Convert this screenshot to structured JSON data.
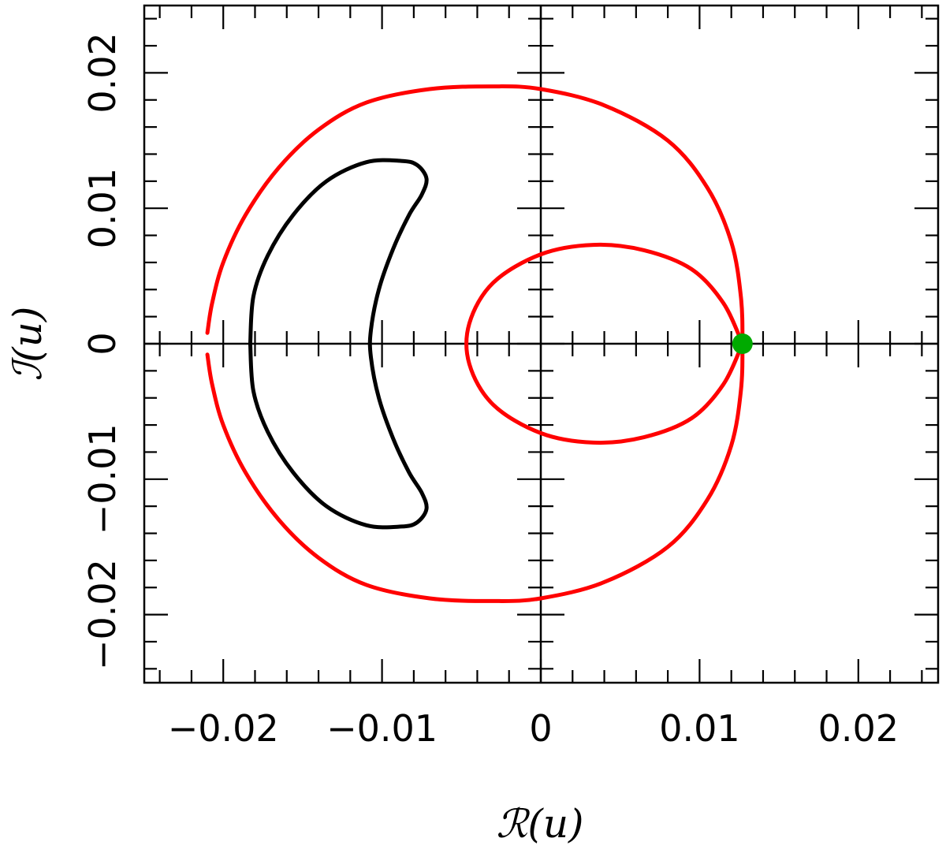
{
  "chart_data": {
    "type": "scatter",
    "title": "",
    "xlabel": "ℛ(u)",
    "ylabel": "ℐ(u)",
    "xlim": [
      -0.025,
      0.025
    ],
    "ylim": [
      -0.025,
      0.025
    ],
    "x_ticks": [
      {
        "value": -0.02,
        "label": "−0.02"
      },
      {
        "value": -0.01,
        "label": "−0.01"
      },
      {
        "value": 0,
        "label": "0"
      },
      {
        "value": 0.01,
        "label": "0.01"
      },
      {
        "value": 0.02,
        "label": "0.02"
      }
    ],
    "y_ticks": [
      {
        "value": -0.02,
        "label": "−0.02"
      },
      {
        "value": -0.01,
        "label": "−0.01"
      },
      {
        "value": 0,
        "label": "0"
      },
      {
        "value": 0.01,
        "label": "0.01"
      },
      {
        "value": 0.02,
        "label": "0.02"
      }
    ],
    "minor_tick_step": 0.002,
    "grid": false,
    "legend": "none",
    "series": [
      {
        "color": "#ff0000",
        "kind": "curve",
        "points": [
          [
            -0.021,
            0.0008
          ],
          [
            -0.0207,
            0.003
          ],
          [
            -0.02,
            0.006
          ],
          [
            -0.0186,
            0.0095
          ],
          [
            -0.0165,
            0.013
          ],
          [
            -0.014,
            0.0158
          ],
          [
            -0.011,
            0.0178
          ],
          [
            -0.007,
            0.0188
          ],
          [
            -0.003,
            0.019
          ],
          [
            0.0,
            0.0188
          ],
          [
            0.004,
            0.0176
          ],
          [
            0.008,
            0.015
          ],
          [
            0.0105,
            0.0115
          ],
          [
            0.012,
            0.0075
          ],
          [
            0.0126,
            0.0035
          ],
          [
            0.0127,
            0.0
          ],
          [
            0.0126,
            -0.0035
          ],
          [
            0.012,
            -0.0075
          ],
          [
            0.0105,
            -0.0115
          ],
          [
            0.008,
            -0.015
          ],
          [
            0.004,
            -0.0176
          ],
          [
            0.0,
            -0.0188
          ],
          [
            -0.003,
            -0.019
          ],
          [
            -0.007,
            -0.0188
          ],
          [
            -0.011,
            -0.0178
          ],
          [
            -0.014,
            -0.0158
          ],
          [
            -0.0165,
            -0.013
          ],
          [
            -0.0186,
            -0.0095
          ],
          [
            -0.02,
            -0.006
          ],
          [
            -0.0207,
            -0.003
          ],
          [
            -0.021,
            -0.0008
          ]
        ]
      },
      {
        "color": "#ff0000",
        "kind": "curve",
        "points": [
          [
            0.0127,
            0.0
          ],
          [
            0.0115,
            0.003
          ],
          [
            0.0095,
            0.0055
          ],
          [
            0.0065,
            0.0069
          ],
          [
            0.0033,
            0.0073
          ],
          [
            0.0,
            0.0066
          ],
          [
            -0.003,
            0.0045
          ],
          [
            -0.0045,
            0.0015
          ],
          [
            -0.0045,
            -0.0015
          ],
          [
            -0.003,
            -0.0045
          ],
          [
            0.0,
            -0.0066
          ],
          [
            0.0033,
            -0.0073
          ],
          [
            0.0065,
            -0.0069
          ],
          [
            0.0095,
            -0.0055
          ],
          [
            0.0115,
            -0.003
          ],
          [
            0.0127,
            0.0
          ]
        ]
      },
      {
        "color": "#000000",
        "kind": "curve",
        "points": [
          [
            -0.0183,
            0.0
          ],
          [
            -0.0181,
            0.0035
          ],
          [
            -0.0172,
            0.0065
          ],
          [
            -0.0156,
            0.0095
          ],
          [
            -0.0135,
            0.012
          ],
          [
            -0.011,
            0.0134
          ],
          [
            -0.0088,
            0.0135
          ],
          [
            -0.0078,
            0.0132
          ],
          [
            -0.0072,
            0.0122
          ],
          [
            -0.0075,
            0.011
          ],
          [
            -0.0083,
            0.0095
          ],
          [
            -0.0093,
            0.007
          ],
          [
            -0.0102,
            0.004
          ],
          [
            -0.0107,
            0.001
          ],
          [
            -0.0107,
            -0.001
          ],
          [
            -0.0102,
            -0.004
          ],
          [
            -0.0093,
            -0.007
          ],
          [
            -0.0083,
            -0.0095
          ],
          [
            -0.0075,
            -0.011
          ],
          [
            -0.0072,
            -0.0122
          ],
          [
            -0.0078,
            -0.0132
          ],
          [
            -0.0088,
            -0.0135
          ],
          [
            -0.011,
            -0.0134
          ],
          [
            -0.0135,
            -0.012
          ],
          [
            -0.0156,
            -0.0095
          ],
          [
            -0.0172,
            -0.0065
          ],
          [
            -0.0181,
            -0.0035
          ],
          [
            -0.0183,
            0.0
          ]
        ]
      }
    ],
    "markers": [
      {
        "x": 0.0127,
        "y": 0.0,
        "color": "#00aa00"
      }
    ]
  }
}
